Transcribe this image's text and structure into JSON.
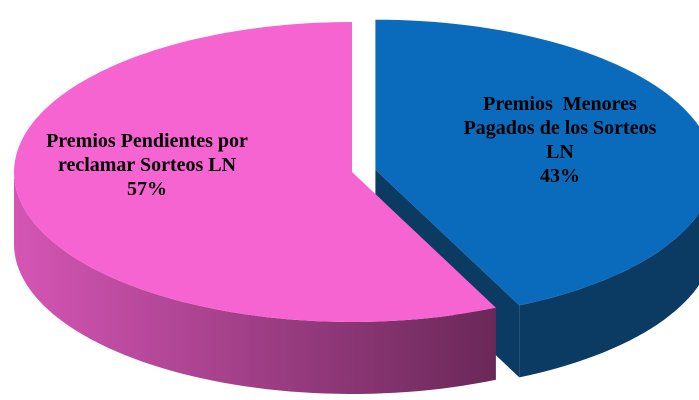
{
  "chart_data": {
    "type": "pie3d",
    "categories": [
      "Premios  Menores Pagados de los Sorteos LN",
      "Premios Pendientes por reclamar Sorteos LN"
    ],
    "values": [
      43,
      57
    ],
    "value_labels": [
      "43%",
      "57%"
    ],
    "colors": [
      "#0a6bbd",
      "#f664d2"
    ],
    "side_colors": [
      "#0b3a62",
      "#b8479c"
    ],
    "exploded": [
      true,
      false
    ]
  }
}
